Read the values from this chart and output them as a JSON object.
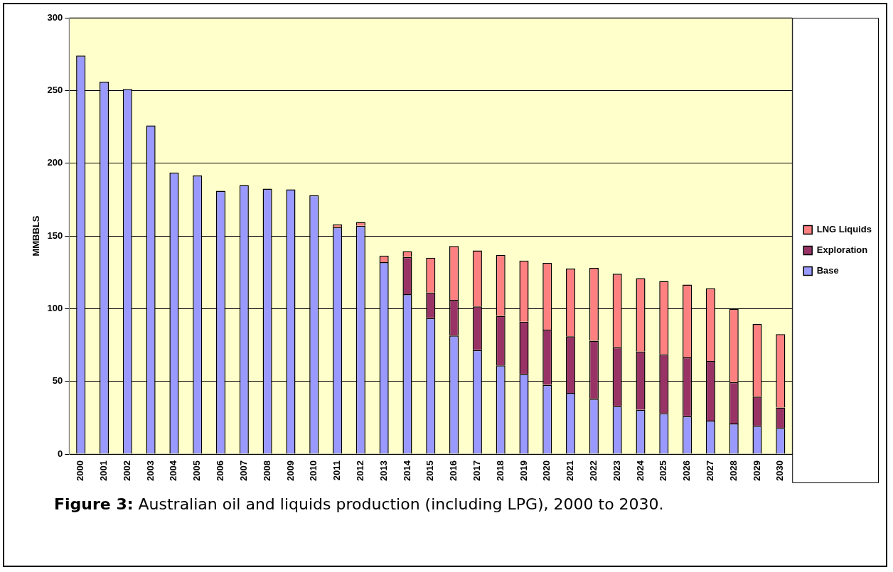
{
  "chart_data": {
    "type": "bar",
    "stacked": true,
    "ylabel": "MMBBLS",
    "categories": [
      "2000",
      "2001",
      "2002",
      "2003",
      "2004",
      "2005",
      "2006",
      "2007",
      "2008",
      "2009",
      "2010",
      "2011",
      "2012",
      "2013",
      "2014",
      "2015",
      "2016",
      "2017",
      "2018",
      "2019",
      "2020",
      "2021",
      "2022",
      "2023",
      "2024",
      "2025",
      "2026",
      "2027",
      "2028",
      "2029",
      "2030"
    ],
    "series": [
      {
        "name": "Base",
        "color": "#9999ff",
        "values": [
          274,
          256,
          251,
          226,
          193.5,
          191.5,
          181,
          185,
          182.5,
          182,
          178,
          156,
          157,
          132,
          110,
          93.5,
          81.5,
          71.5,
          61,
          55,
          47.5,
          42,
          38,
          33,
          30.5,
          28,
          26,
          23,
          21,
          19.5,
          18
        ]
      },
      {
        "name": "Exploration",
        "color": "#993366",
        "values": [
          null,
          null,
          null,
          null,
          null,
          null,
          null,
          null,
          null,
          null,
          null,
          null,
          null,
          null,
          25.5,
          17.5,
          24.5,
          30,
          34,
          36,
          38,
          39,
          40,
          40.5,
          40,
          40.5,
          40.5,
          41,
          28.5,
          20,
          14
        ]
      },
      {
        "name": "LNG Liquids",
        "color": "#ff8080",
        "values": [
          null,
          null,
          null,
          null,
          null,
          null,
          null,
          null,
          null,
          null,
          null,
          2,
          2.5,
          4.5,
          4,
          24,
          37,
          38.5,
          42,
          42,
          46,
          46.5,
          50,
          50.5,
          50.5,
          50.5,
          50,
          50,
          50.5,
          50,
          50.5
        ]
      }
    ],
    "ylim": [
      0,
      300
    ],
    "yticks": [
      0,
      50,
      100,
      150,
      200,
      250,
      300
    ],
    "grid": "y",
    "legend": "right",
    "annotations": [
      "Figure 3: Australian oil and liquids production (including LPG), 2000 to 2030."
    ]
  }
}
